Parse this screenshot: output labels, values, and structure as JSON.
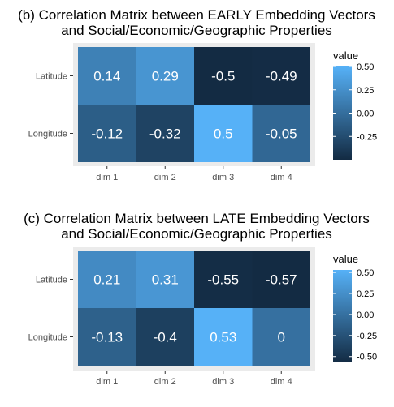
{
  "colors": {
    "low": "#132B43",
    "high": "#56B1F7",
    "panel_bg": "#EBEBEB",
    "tick_text": "#4D4D4D"
  },
  "chart_data": [
    {
      "type": "heatmap",
      "title": "(b) Correlation Matrix between EARLY Embedding Vectors\nand Social/Economic/Geographic Properties",
      "x_categories": [
        "dim 1",
        "dim 2",
        "dim 3",
        "dim 4"
      ],
      "y_categories": [
        "Latitude",
        "Longitude"
      ],
      "values": [
        [
          0.14,
          0.29,
          -0.5,
          -0.49
        ],
        [
          -0.12,
          -0.32,
          0.5,
          -0.05
        ]
      ],
      "labels": [
        [
          "0.14",
          "0.29",
          "-0.5",
          "-0.49"
        ],
        [
          "-0.12",
          "-0.32",
          "0.5",
          "-0.05"
        ]
      ],
      "legend": {
        "title": "value",
        "range": [
          -0.5,
          0.5
        ],
        "ticks": [
          0.5,
          0.25,
          0.0,
          -0.25
        ],
        "tick_labels": [
          "0.50",
          "0.25",
          "0.00",
          "-0.25"
        ],
        "position": "right"
      }
    },
    {
      "type": "heatmap",
      "title": "(c) Correlation Matrix between LATE Embedding Vectors\nand Social/Economic/Geographic Properties",
      "x_categories": [
        "dim 1",
        "dim 2",
        "dim 3",
        "dim 4"
      ],
      "y_categories": [
        "Latitude",
        "Longitude"
      ],
      "values": [
        [
          0.21,
          0.31,
          -0.55,
          -0.57
        ],
        [
          -0.13,
          -0.4,
          0.53,
          0.0
        ]
      ],
      "labels": [
        [
          "0.21",
          "0.31",
          "-0.55",
          "-0.57"
        ],
        [
          "-0.13",
          "-0.4",
          "0.53",
          "0"
        ]
      ],
      "legend": {
        "title": "value",
        "range": [
          -0.57,
          0.53
        ],
        "ticks": [
          0.5,
          0.25,
          0.0,
          -0.25,
          -0.5
        ],
        "tick_labels": [
          "0.50",
          "0.25",
          "0.00",
          "-0.25",
          "-0.50"
        ],
        "position": "right"
      }
    }
  ]
}
